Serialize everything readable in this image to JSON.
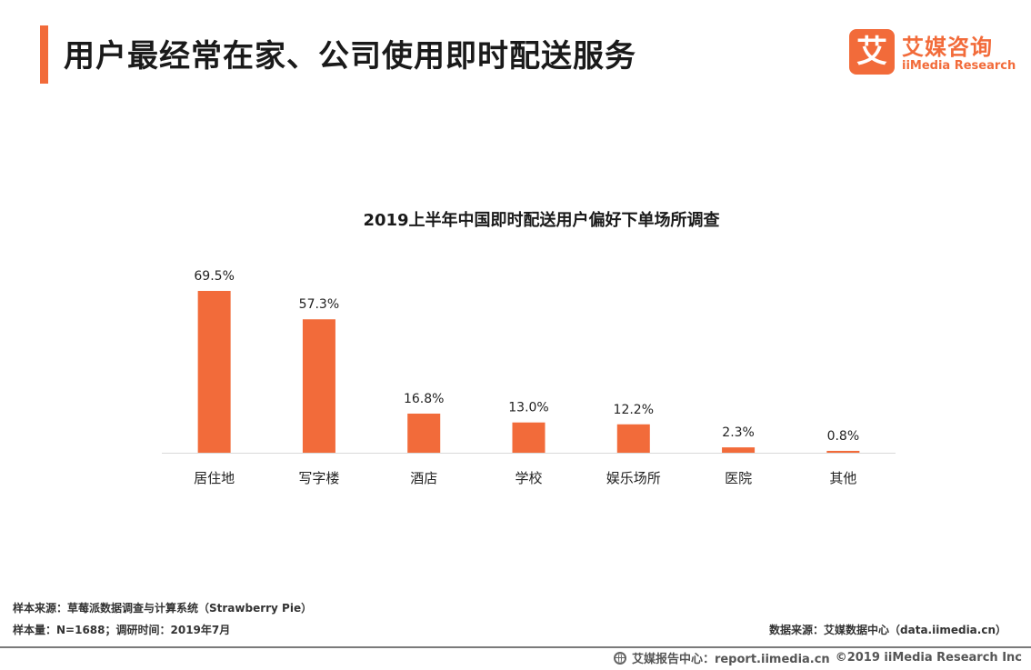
{
  "header": {
    "title": "用户最经常在家、公司使用即时配送服务"
  },
  "logo": {
    "mark": "艾",
    "name_cn": "艾媒咨询",
    "name_en": "iiMedia Research"
  },
  "chart_data": {
    "type": "bar",
    "title": "2019上半年中国即时配送用户偏好下单场所调查",
    "categories": [
      "居住地",
      "写字楼",
      "酒店",
      "学校",
      "娱乐场所",
      "医院",
      "其他"
    ],
    "values": [
      69.5,
      57.3,
      16.8,
      13.0,
      12.2,
      2.3,
      0.8
    ],
    "value_labels": [
      "69.5%",
      "57.3%",
      "16.8%",
      "13.0%",
      "12.2%",
      "2.3%",
      "0.8%"
    ],
    "unit": "%",
    "ylim": [
      0,
      70
    ],
    "grid": false,
    "legend": "none",
    "bar_color": "#f26b3a",
    "axis_color": "#d9d9d9"
  },
  "footer": {
    "sample_source": "样本来源：草莓派数据调查与计算系统（Strawberry Pie）",
    "sample_size": "样本量：N=1688；调研时间：2019年7月",
    "data_source": "数据来源：艾媒数据中心（data.iimedia.cn）",
    "report_center": "艾媒报告中心：report.iimedia.cn",
    "copyright": "©2019  iiMedia Research  Inc",
    "icon": "globe-icon"
  }
}
